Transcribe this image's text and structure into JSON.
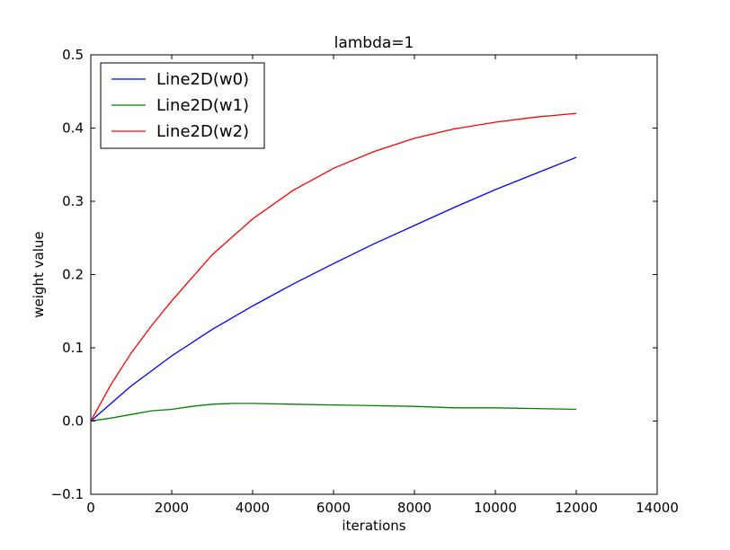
{
  "chart_data": {
    "type": "line",
    "title": "lambda=1",
    "xlabel": "iterations",
    "ylabel": "weight value",
    "xlim": [
      0,
      14000
    ],
    "ylim": [
      -0.1,
      0.5
    ],
    "xticks": [
      0,
      2000,
      4000,
      6000,
      8000,
      10000,
      12000,
      14000
    ],
    "yticks": [
      -0.1,
      0.0,
      0.1,
      0.2,
      0.3,
      0.4,
      0.5
    ],
    "xtick_labels": [
      "0",
      "2000",
      "4000",
      "6000",
      "8000",
      "10000",
      "12000",
      "14000"
    ],
    "ytick_labels": [
      "−0.1",
      "0.0",
      "0.1",
      "0.2",
      "0.3",
      "0.4",
      "0.5"
    ],
    "grid": false,
    "legend_position": "top-left",
    "series": [
      {
        "name": "Line2D(w0)",
        "color": "#0000ff",
        "x": [
          0,
          1000,
          2000,
          3000,
          4000,
          5000,
          6000,
          7000,
          8000,
          9000,
          10000,
          11000,
          12000
        ],
        "y": [
          0.0,
          0.048,
          0.089,
          0.125,
          0.157,
          0.187,
          0.215,
          0.242,
          0.267,
          0.292,
          0.316,
          0.338,
          0.36
        ]
      },
      {
        "name": "Line2D(w1)",
        "color": "#008000",
        "x": [
          0,
          500,
          1000,
          1500,
          2000,
          2500,
          3000,
          3500,
          4000,
          5000,
          6000,
          7000,
          8000,
          9000,
          10000,
          11000,
          12000
        ],
        "y": [
          0.0,
          0.004,
          0.009,
          0.014,
          0.016,
          0.02,
          0.023,
          0.024,
          0.024,
          0.023,
          0.022,
          0.021,
          0.02,
          0.018,
          0.018,
          0.017,
          0.016
        ]
      },
      {
        "name": "Line2D(w2)",
        "color": "#ff0000",
        "x": [
          0,
          500,
          1000,
          1500,
          2000,
          3000,
          4000,
          5000,
          6000,
          7000,
          8000,
          9000,
          10000,
          11000,
          12000
        ],
        "y": [
          0.0,
          0.05,
          0.093,
          0.13,
          0.164,
          0.227,
          0.276,
          0.315,
          0.345,
          0.368,
          0.386,
          0.399,
          0.408,
          0.415,
          0.42
        ]
      }
    ]
  }
}
